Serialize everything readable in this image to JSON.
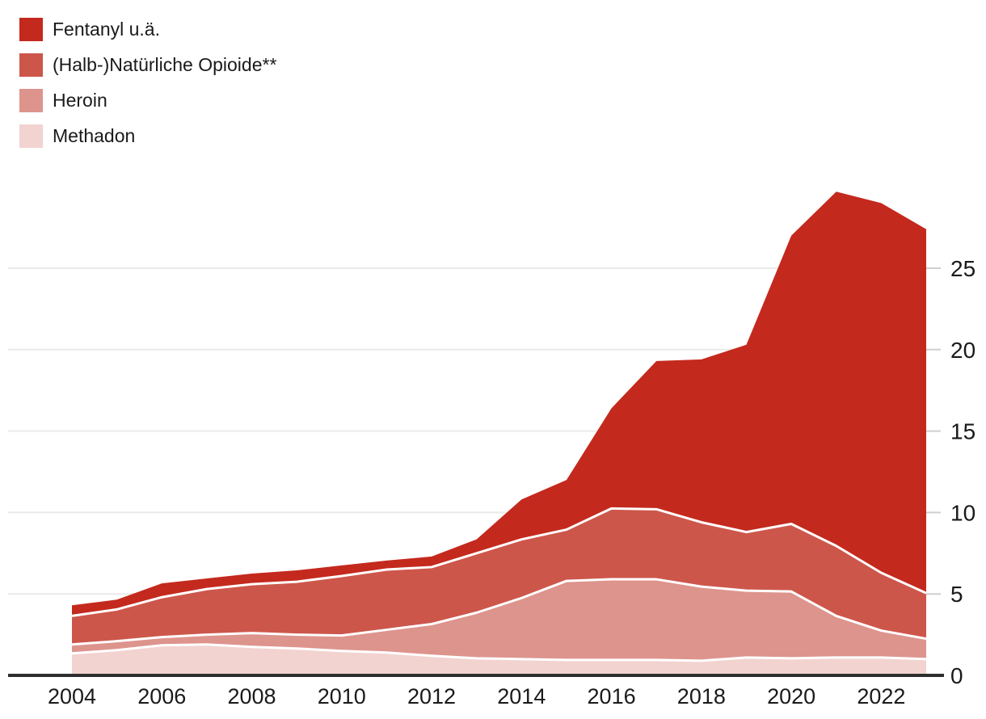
{
  "legend": {
    "items": [
      {
        "label": "Fentanyl u.ä.",
        "color": "#c4291d"
      },
      {
        "label": "(Halb-)Natürliche Opioide**",
        "color": "#cd564b"
      },
      {
        "label": "Heroin",
        "color": "#dd948d"
      },
      {
        "label": "Methadon",
        "color": "#f2d3d0"
      }
    ]
  },
  "chart_data": {
    "type": "area",
    "stacked": true,
    "title": "",
    "xlabel": "",
    "ylabel": "",
    "x": [
      2004,
      2005,
      2006,
      2007,
      2008,
      2009,
      2010,
      2011,
      2012,
      2013,
      2014,
      2015,
      2016,
      2017,
      2018,
      2019,
      2020,
      2021,
      2022,
      2023
    ],
    "x_tick_labels": [
      "2004",
      "2006",
      "2008",
      "2010",
      "2012",
      "2014",
      "2016",
      "2018",
      "2020",
      "2022"
    ],
    "x_tick_years": [
      2004,
      2006,
      2008,
      2010,
      2012,
      2014,
      2016,
      2018,
      2020,
      2022
    ],
    "y_ticks": [
      0,
      5,
      10,
      15,
      20,
      25
    ],
    "ylim": [
      0,
      30
    ],
    "grid": "horizontal",
    "legend_position": "top-left",
    "series": [
      {
        "name": "Methadon",
        "color": "#f2d3d0",
        "values": [
          1.35,
          1.55,
          1.85,
          1.9,
          1.75,
          1.65,
          1.5,
          1.4,
          1.2,
          1.05,
          1.0,
          0.95,
          0.95,
          0.95,
          0.9,
          1.1,
          1.05,
          1.1,
          1.1,
          1.0
        ]
      },
      {
        "name": "Heroin",
        "color": "#dd948d",
        "values": [
          0.55,
          0.55,
          0.5,
          0.6,
          0.85,
          0.85,
          0.95,
          1.4,
          1.95,
          2.8,
          3.75,
          4.85,
          4.95,
          4.95,
          4.55,
          4.1,
          4.1,
          2.55,
          1.65,
          1.25
        ]
      },
      {
        "name": "(Halb-)Natürliche Opioide**",
        "color": "#cd564b",
        "values": [
          1.75,
          1.95,
          2.45,
          2.8,
          3.0,
          3.25,
          3.65,
          3.7,
          3.5,
          3.65,
          3.6,
          3.15,
          4.35,
          4.3,
          3.95,
          3.6,
          4.15,
          4.3,
          3.55,
          2.8
        ]
      },
      {
        "name": "Fentanyl u.ä.",
        "color": "#c4291d",
        "values": [
          0.65,
          0.6,
          0.85,
          0.65,
          0.65,
          0.7,
          0.65,
          0.55,
          0.65,
          0.85,
          2.45,
          3.05,
          6.15,
          9.1,
          10.0,
          11.5,
          17.7,
          21.75,
          22.7,
          22.35
        ]
      }
    ],
    "separator_color": "#ffffff"
  },
  "axis": {
    "grid_color": "#eaeaea",
    "tick_color": "#cfcfcf",
    "baseline_color": "#2e2e2e",
    "label_color": "#1a1a1a"
  }
}
